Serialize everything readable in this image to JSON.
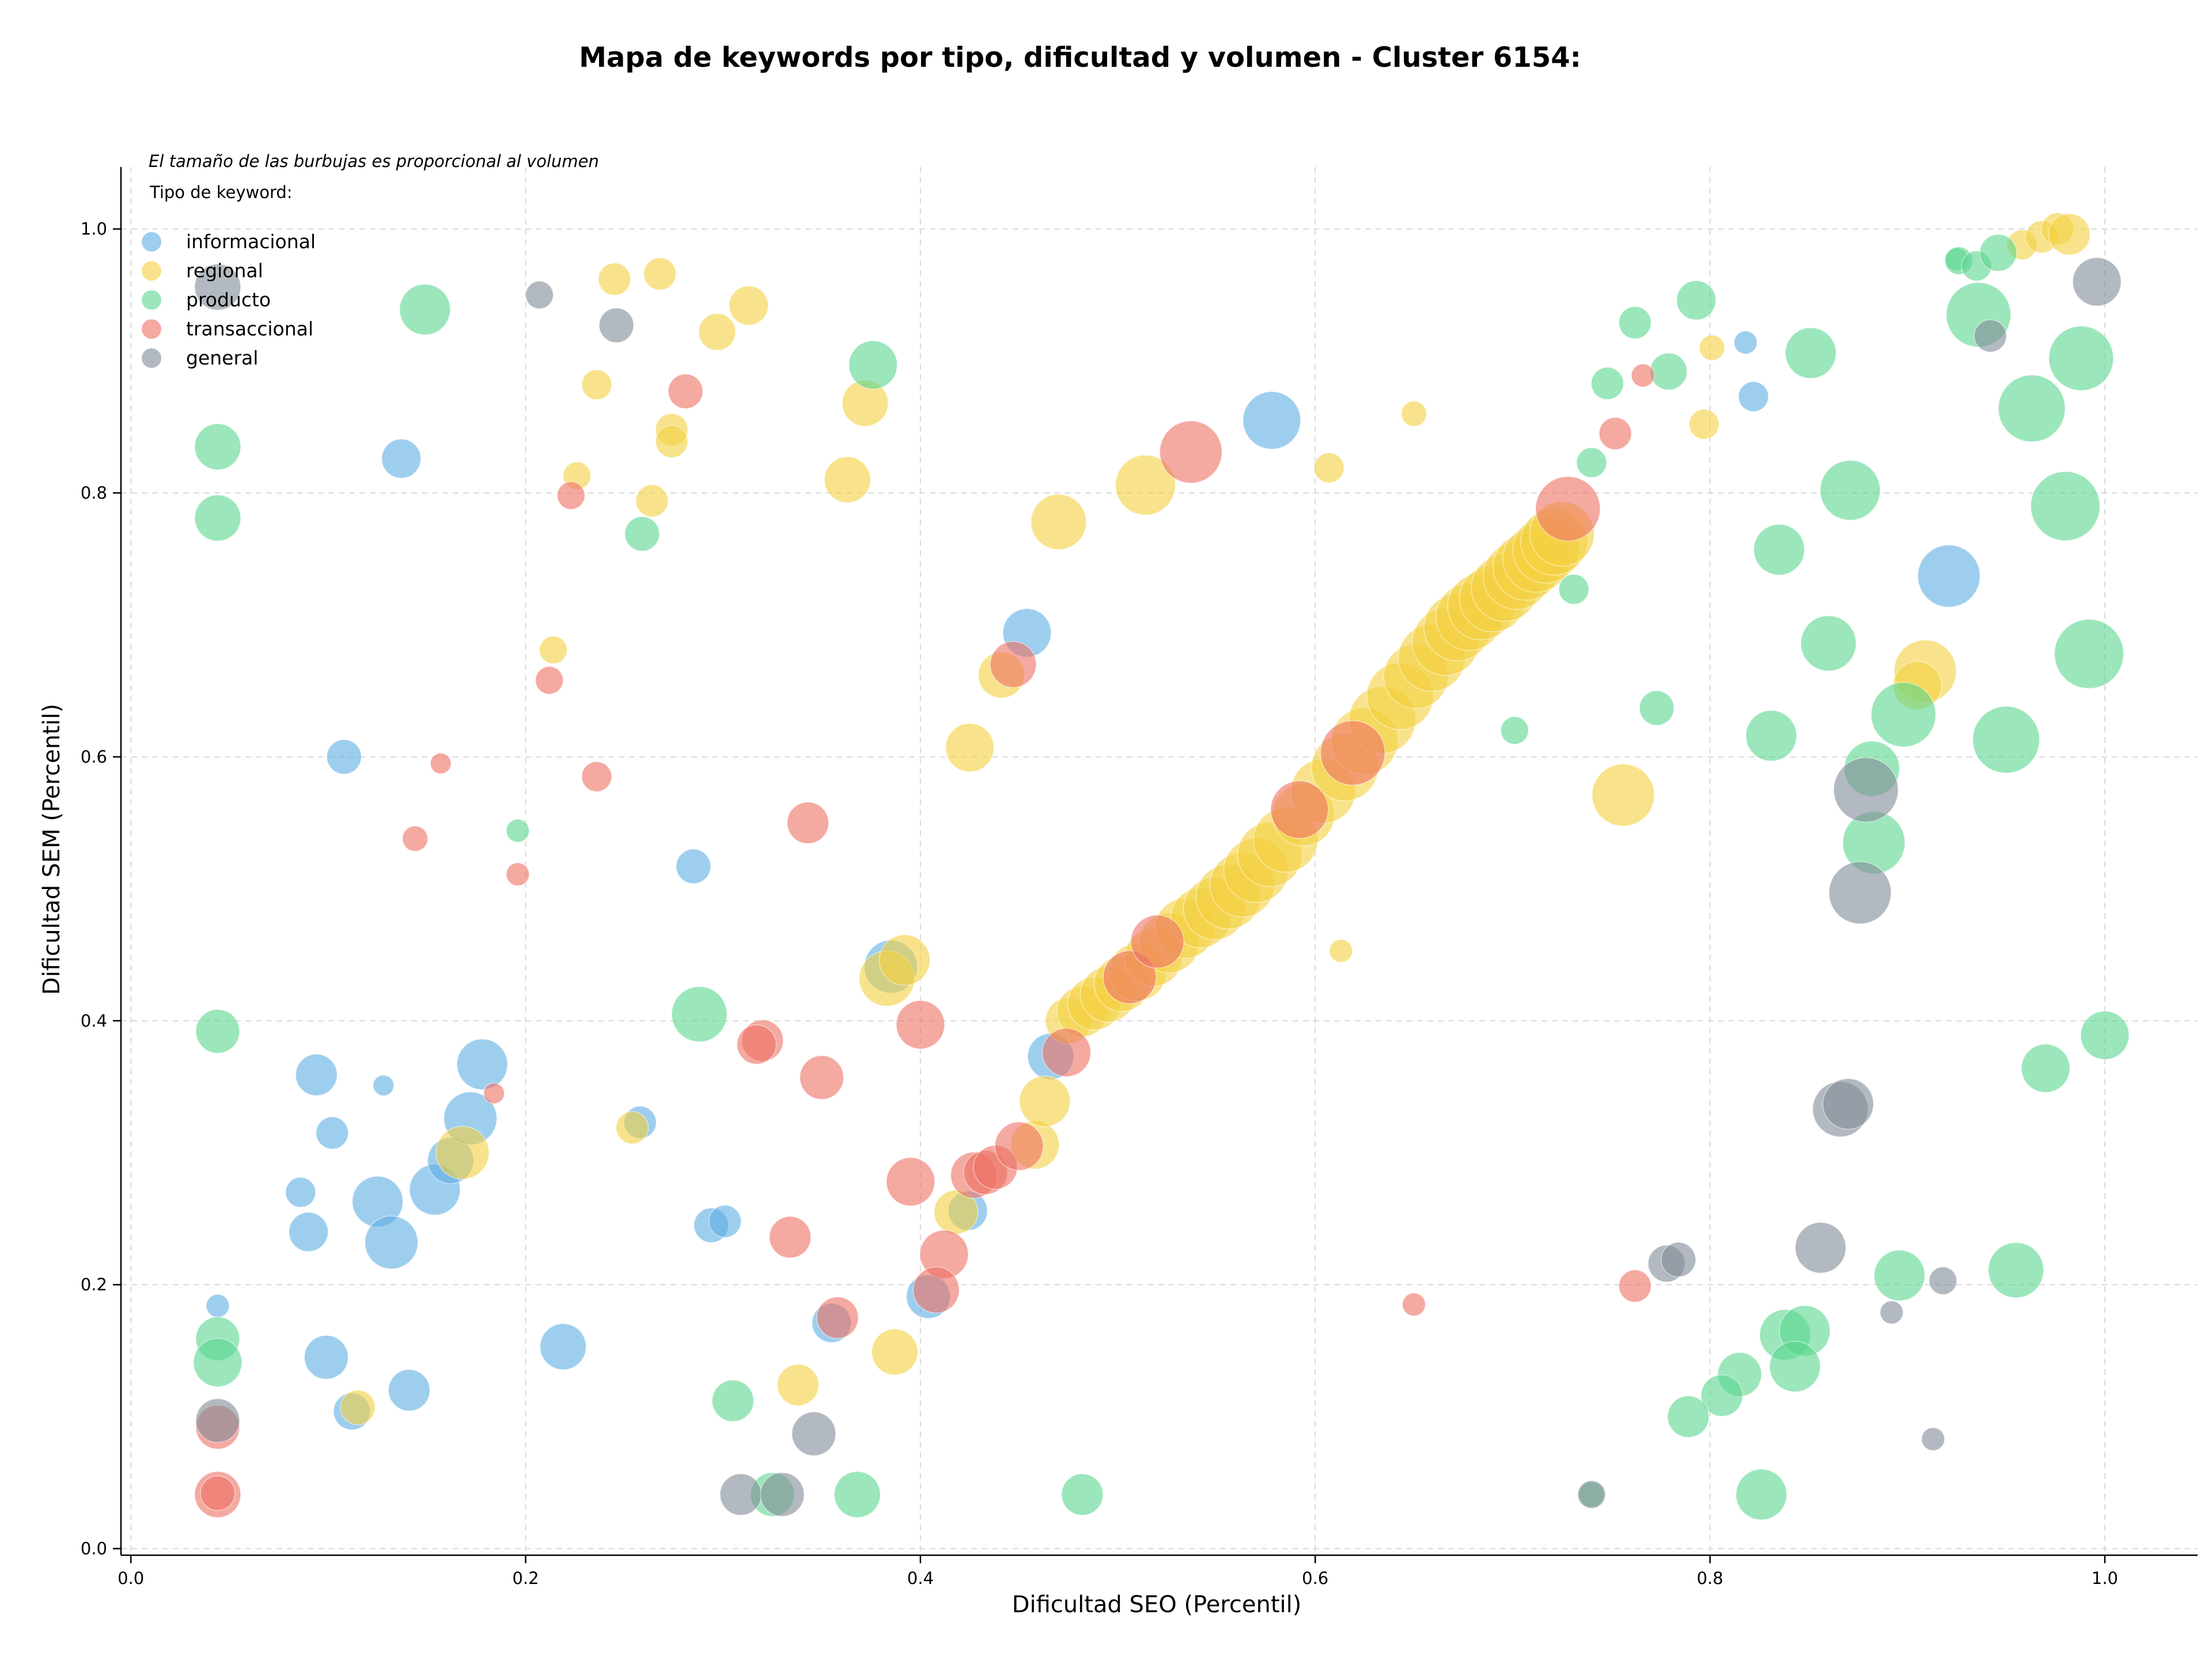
{
  "chart_data": {
    "type": "scatter",
    "title": "Mapa de keywords por tipo, dificultad y volumen - Cluster 6154:",
    "xlabel": "Dificultad SEO (Percentil)",
    "ylabel": "Dificultad SEM (Percentil)",
    "xlim": [
      -0.005,
      1.047
    ],
    "ylim": [
      -0.005,
      1.047
    ],
    "xticks": [
      0.0,
      0.2,
      0.4,
      0.6,
      0.8,
      1.0
    ],
    "yticks": [
      0.0,
      0.2,
      0.4,
      0.6,
      0.8,
      1.0
    ],
    "xtick_labels": [
      "0.0",
      "0.2",
      "0.4",
      "0.6",
      "0.8",
      "1.0"
    ],
    "ytick_labels": [
      "0.0",
      "0.2",
      "0.4",
      "0.6",
      "0.8",
      "1.0"
    ],
    "grid": true,
    "note": "El tamaño de las burbujas es proporcional al volumen",
    "legend_title": "Tipo de keyword:",
    "legend_position": "top-left",
    "series": [
      {
        "name": "informacional",
        "color": "#5DADE2",
        "points": [
          [
            0.108,
            0.6,
            30
          ],
          [
            0.137,
            0.826,
            34
          ],
          [
            0.285,
            0.517,
            30
          ],
          [
            0.094,
            0.359,
            36
          ],
          [
            0.102,
            0.315,
            28
          ],
          [
            0.086,
            0.27,
            26
          ],
          [
            0.09,
            0.24,
            34
          ],
          [
            0.125,
            0.263,
            44
          ],
          [
            0.132,
            0.232,
            46
          ],
          [
            0.154,
            0.272,
            44
          ],
          [
            0.162,
            0.294,
            40
          ],
          [
            0.172,
            0.326,
            46
          ],
          [
            0.178,
            0.367,
            44
          ],
          [
            0.128,
            0.351,
            18
          ],
          [
            0.099,
            0.145,
            38
          ],
          [
            0.112,
            0.104,
            32
          ],
          [
            0.141,
            0.12,
            36
          ],
          [
            0.219,
            0.153,
            40
          ],
          [
            0.044,
            0.184,
            20
          ],
          [
            0.258,
            0.323,
            28
          ],
          [
            0.294,
            0.245,
            30
          ],
          [
            0.301,
            0.248,
            28
          ],
          [
            0.355,
            0.171,
            34
          ],
          [
            0.385,
            0.441,
            46
          ],
          [
            0.404,
            0.191,
            38
          ],
          [
            0.424,
            0.256,
            34
          ],
          [
            0.454,
            0.694,
            42
          ],
          [
            0.466,
            0.373,
            40
          ],
          [
            0.578,
            0.855,
            50
          ],
          [
            0.818,
            0.914,
            20
          ],
          [
            0.822,
            0.873,
            26
          ],
          [
            0.921,
            0.737,
            54
          ]
        ]
      },
      {
        "name": "regional",
        "color": "#F4D03F",
        "points": [
          [
            0.245,
            0.962,
            28
          ],
          [
            0.268,
            0.966,
            28
          ],
          [
            0.313,
            0.942,
            34
          ],
          [
            0.297,
            0.922,
            32
          ],
          [
            0.236,
            0.882,
            26
          ],
          [
            0.226,
            0.813,
            24
          ],
          [
            0.264,
            0.794,
            28
          ],
          [
            0.274,
            0.848,
            28
          ],
          [
            0.274,
            0.839,
            28
          ],
          [
            0.214,
            0.681,
            24
          ],
          [
            0.372,
            0.868,
            40
          ],
          [
            0.363,
            0.81,
            40
          ],
          [
            0.47,
            0.778,
            48
          ],
          [
            0.514,
            0.806,
            52
          ],
          [
            0.425,
            0.607,
            42
          ],
          [
            0.441,
            0.662,
            40
          ],
          [
            0.383,
            0.432,
            48
          ],
          [
            0.392,
            0.446,
            44
          ],
          [
            0.387,
            0.149,
            40
          ],
          [
            0.338,
            0.124,
            36
          ],
          [
            0.254,
            0.319,
            28
          ],
          [
            0.168,
            0.3,
            46
          ],
          [
            0.115,
            0.107,
            30
          ],
          [
            0.418,
            0.255,
            38
          ],
          [
            0.458,
            0.306,
            42
          ],
          [
            0.463,
            0.339,
            44
          ],
          [
            0.607,
            0.819,
            26
          ],
          [
            0.65,
            0.86,
            22
          ],
          [
            0.613,
            0.453,
            20
          ],
          [
            0.756,
            0.571,
            54
          ],
          [
            0.797,
            0.852,
            26
          ],
          [
            0.801,
            0.91,
            22
          ],
          [
            0.909,
            0.665,
            54
          ],
          [
            0.905,
            0.654,
            42
          ],
          [
            0.958,
            0.988,
            26
          ],
          [
            0.968,
            0.994,
            28
          ],
          [
            0.976,
            1.0,
            28
          ],
          [
            0.982,
            0.996,
            36
          ],
          [
            0.475,
            0.4,
            40
          ],
          [
            0.482,
            0.407,
            44
          ],
          [
            0.488,
            0.413,
            46
          ],
          [
            0.495,
            0.42,
            48
          ],
          [
            0.502,
            0.428,
            48
          ],
          [
            0.51,
            0.437,
            50
          ],
          [
            0.518,
            0.448,
            50
          ],
          [
            0.526,
            0.459,
            52
          ],
          [
            0.534,
            0.47,
            52
          ],
          [
            0.542,
            0.478,
            52
          ],
          [
            0.549,
            0.485,
            54
          ],
          [
            0.556,
            0.494,
            56
          ],
          [
            0.563,
            0.503,
            56
          ],
          [
            0.57,
            0.514,
            56
          ],
          [
            0.577,
            0.526,
            56
          ],
          [
            0.585,
            0.537,
            56
          ],
          [
            0.594,
            0.556,
            54
          ],
          [
            0.604,
            0.574,
            56
          ],
          [
            0.615,
            0.592,
            58
          ],
          [
            0.625,
            0.612,
            58
          ],
          [
            0.634,
            0.628,
            58
          ],
          [
            0.643,
            0.646,
            58
          ],
          [
            0.651,
            0.661,
            56
          ],
          [
            0.659,
            0.675,
            58
          ],
          [
            0.666,
            0.687,
            58
          ],
          [
            0.672,
            0.698,
            58
          ],
          [
            0.678,
            0.706,
            58
          ],
          [
            0.684,
            0.714,
            58
          ],
          [
            0.69,
            0.72,
            58
          ],
          [
            0.696,
            0.728,
            58
          ],
          [
            0.702,
            0.737,
            58
          ],
          [
            0.707,
            0.744,
            58
          ],
          [
            0.712,
            0.75,
            58
          ],
          [
            0.717,
            0.757,
            58
          ],
          [
            0.721,
            0.763,
            58
          ],
          [
            0.725,
            0.769,
            56
          ]
        ]
      },
      {
        "name": "producto",
        "color": "#58D68D",
        "points": [
          [
            0.149,
            0.939,
            44
          ],
          [
            0.044,
            0.835,
            40
          ],
          [
            0.044,
            0.781,
            40
          ],
          [
            0.044,
            0.392,
            38
          ],
          [
            0.044,
            0.159,
            38
          ],
          [
            0.044,
            0.141,
            42
          ],
          [
            0.259,
            0.769,
            30
          ],
          [
            0.376,
            0.897,
            42
          ],
          [
            0.288,
            0.405,
            48
          ],
          [
            0.196,
            0.544,
            20
          ],
          [
            0.305,
            0.112,
            36
          ],
          [
            0.325,
            0.041,
            38
          ],
          [
            0.368,
            0.041,
            40
          ],
          [
            0.482,
            0.041,
            36
          ],
          [
            0.701,
            0.62,
            24
          ],
          [
            0.731,
            0.727,
            26
          ],
          [
            0.74,
            0.823,
            26
          ],
          [
            0.748,
            0.883,
            28
          ],
          [
            0.762,
            0.929,
            28
          ],
          [
            0.779,
            0.892,
            32
          ],
          [
            0.793,
            0.946,
            34
          ],
          [
            0.773,
            0.637,
            30
          ],
          [
            0.851,
            0.906,
            44
          ],
          [
            0.835,
            0.757,
            44
          ],
          [
            0.831,
            0.616,
            44
          ],
          [
            0.871,
            0.802,
            52
          ],
          [
            0.86,
            0.686,
            48
          ],
          [
            0.882,
            0.591,
            48
          ],
          [
            0.898,
            0.632,
            56
          ],
          [
            0.883,
            0.535,
            54
          ],
          [
            0.95,
            0.613,
            58
          ],
          [
            0.936,
            0.935,
            56
          ],
          [
            0.963,
            0.864,
            58
          ],
          [
            0.98,
            0.79,
            60
          ],
          [
            0.988,
            0.902,
            56
          ],
          [
            0.992,
            0.678,
            60
          ],
          [
            0.925,
            0.977,
            20
          ],
          [
            0.926,
            0.976,
            24
          ],
          [
            0.935,
            0.972,
            26
          ],
          [
            0.946,
            0.982,
            32
          ],
          [
            0.97,
            0.364,
            42
          ],
          [
            1.0,
            0.389,
            42
          ],
          [
            0.955,
            0.211,
            48
          ],
          [
            0.896,
            0.207,
            44
          ],
          [
            0.838,
            0.162,
            44
          ],
          [
            0.848,
            0.165,
            44
          ],
          [
            0.843,
            0.138,
            44
          ],
          [
            0.815,
            0.132,
            38
          ],
          [
            0.806,
            0.116,
            36
          ],
          [
            0.789,
            0.1,
            36
          ],
          [
            0.826,
            0.041,
            44
          ],
          [
            0.74,
            0.041,
            22
          ]
        ]
      },
      {
        "name": "transaccional",
        "color": "#EC7063",
        "points": [
          [
            0.281,
            0.877,
            30
          ],
          [
            0.223,
            0.798,
            24
          ],
          [
            0.212,
            0.658,
            24
          ],
          [
            0.157,
            0.595,
            18
          ],
          [
            0.144,
            0.538,
            22
          ],
          [
            0.196,
            0.511,
            20
          ],
          [
            0.236,
            0.585,
            26
          ],
          [
            0.184,
            0.345,
            18
          ],
          [
            0.343,
            0.55,
            36
          ],
          [
            0.32,
            0.385,
            36
          ],
          [
            0.317,
            0.382,
            34
          ],
          [
            0.35,
            0.357,
            38
          ],
          [
            0.334,
            0.236,
            36
          ],
          [
            0.358,
            0.175,
            36
          ],
          [
            0.044,
            0.092,
            38
          ],
          [
            0.044,
            0.041,
            40
          ],
          [
            0.044,
            0.042,
            30
          ],
          [
            0.4,
            0.397,
            42
          ],
          [
            0.395,
            0.278,
            42
          ],
          [
            0.412,
            0.223,
            42
          ],
          [
            0.408,
            0.196,
            40
          ],
          [
            0.427,
            0.283,
            40
          ],
          [
            0.433,
            0.285,
            38
          ],
          [
            0.438,
            0.289,
            38
          ],
          [
            0.45,
            0.305,
            42
          ],
          [
            0.447,
            0.67,
            40
          ],
          [
            0.474,
            0.376,
            42
          ],
          [
            0.506,
            0.433,
            46
          ],
          [
            0.52,
            0.46,
            46
          ],
          [
            0.537,
            0.831,
            54
          ],
          [
            0.592,
            0.56,
            50
          ],
          [
            0.619,
            0.603,
            56
          ],
          [
            0.728,
            0.788,
            56
          ],
          [
            0.752,
            0.845,
            28
          ],
          [
            0.766,
            0.889,
            20
          ],
          [
            0.65,
            0.185,
            20
          ],
          [
            0.762,
            0.199,
            28
          ]
        ]
      },
      {
        "name": "general",
        "color": "#808B96",
        "points": [
          [
            0.044,
            0.956,
            40
          ],
          [
            0.207,
            0.95,
            24
          ],
          [
            0.246,
            0.927,
            30
          ],
          [
            0.044,
            0.097,
            38
          ],
          [
            0.309,
            0.041,
            36
          ],
          [
            0.33,
            0.041,
            38
          ],
          [
            0.346,
            0.087,
            38
          ],
          [
            0.74,
            0.041,
            24
          ],
          [
            0.778,
            0.216,
            32
          ],
          [
            0.784,
            0.219,
            30
          ],
          [
            0.856,
            0.228,
            44
          ],
          [
            0.866,
            0.333,
            48
          ],
          [
            0.87,
            0.337,
            44
          ],
          [
            0.876,
            0.497,
            54
          ],
          [
            0.879,
            0.575,
            56
          ],
          [
            0.892,
            0.179,
            20
          ],
          [
            0.913,
            0.083,
            20
          ],
          [
            0.918,
            0.203,
            24
          ],
          [
            0.942,
            0.919,
            28
          ],
          [
            0.996,
            0.96,
            42
          ]
        ]
      }
    ]
  }
}
